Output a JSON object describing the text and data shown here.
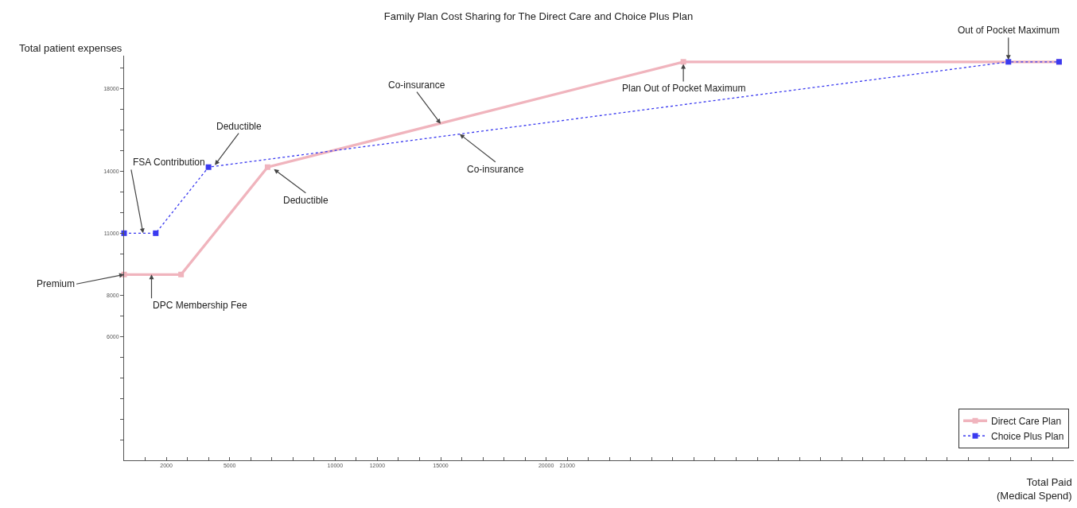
{
  "chart_data": {
    "type": "line",
    "title": "Family Plan Cost Sharing for The Direct Care and Choice Plus Plan",
    "xlabel": "Total Paid\n(Medical Spend)",
    "ylabel": "Total patient expenses",
    "xlim": [
      0,
      45000
    ],
    "ylim": [
      0,
      19600
    ],
    "xticks": [
      {
        "value": 1000,
        "label": null
      },
      2000,
      {
        "value": 3000,
        "label": null
      },
      {
        "value": 4000,
        "label": null
      },
      5000,
      {
        "value": 6000,
        "label": null
      },
      {
        "value": 7000,
        "label": null
      },
      {
        "value": 8000,
        "label": null
      },
      {
        "value": 9000,
        "label": null
      },
      10000,
      {
        "value": 11000,
        "label": null
      },
      12000,
      {
        "value": 13000,
        "label": null
      },
      {
        "value": 14000,
        "label": null
      },
      15000,
      {
        "value": 16000,
        "label": null
      },
      {
        "value": 17000,
        "label": null
      },
      {
        "value": 18000,
        "label": null
      },
      {
        "value": 19000,
        "label": null
      },
      20000,
      21000,
      {
        "value": 22000,
        "label": null
      },
      {
        "value": 23000,
        "label": null
      },
      {
        "value": 24000,
        "label": null
      },
      {
        "value": 25000,
        "label": null
      },
      {
        "value": 26000,
        "label": null
      },
      {
        "value": 27000,
        "label": null
      },
      {
        "value": 28000,
        "label": null
      },
      {
        "value": 29000,
        "label": null
      },
      {
        "value": 30000,
        "label": null
      },
      {
        "value": 31000,
        "label": null
      },
      {
        "value": 32000,
        "label": null
      },
      {
        "value": 33000,
        "label": null
      },
      {
        "value": 34000,
        "label": null
      },
      {
        "value": 35000,
        "label": null
      },
      {
        "value": 36000,
        "label": null
      },
      {
        "value": 37000,
        "label": null
      },
      {
        "value": 38000,
        "label": null
      },
      {
        "value": 39000,
        "label": null
      },
      {
        "value": 40000,
        "label": null
      },
      {
        "value": 41000,
        "label": null
      },
      {
        "value": 42000,
        "label": null
      },
      {
        "value": 43000,
        "label": null
      },
      {
        "value": 44000,
        "label": null
      }
    ],
    "yticks": [
      {
        "value": 1000,
        "label": null
      },
      {
        "value": 2000,
        "label": null
      },
      {
        "value": 3000,
        "label": null
      },
      {
        "value": 4000,
        "label": null
      },
      {
        "value": 5000,
        "label": null
      },
      6000,
      {
        "value": 7000,
        "label": null
      },
      8000,
      {
        "value": 9000,
        "label": null
      },
      {
        "value": 10000,
        "label": null
      },
      11000,
      {
        "value": 12000,
        "label": null
      },
      {
        "value": 13000,
        "label": null
      },
      14000,
      {
        "value": 15000,
        "label": null
      },
      {
        "value": 16000,
        "label": null
      },
      {
        "value": 17000,
        "label": null
      },
      18000,
      {
        "value": 19000,
        "label": null
      }
    ],
    "grid": false,
    "legend": "bottom right",
    "marker": "square",
    "series": [
      {
        "name": "Direct Care Plan",
        "color": "#f0b4bd",
        "line_style": "solid",
        "x": [
          0,
          2700,
          6800,
          26500,
          44300
        ],
        "values": [
          9000,
          9000,
          14200,
          19300,
          19300
        ]
      },
      {
        "name": "Choice Plus Plan",
        "color": "#3a3af0",
        "line_style": "dotted",
        "x": [
          0,
          1500,
          4000,
          41900,
          44300
        ],
        "values": [
          11000,
          11000,
          14200,
          19300,
          19300
        ]
      }
    ],
    "annotations": [
      {
        "text": "Premium",
        "x": 0,
        "y": 9000
      },
      {
        "text": "DPC Membership Fee",
        "x": 1300,
        "y": 9000
      },
      {
        "text": "FSA Contribution",
        "x": 900,
        "y": 11000
      },
      {
        "text": "Deductible",
        "x": 4300,
        "y": 14300
      },
      {
        "text": "Deductible",
        "x": 7100,
        "y": 14100
      },
      {
        "text": "Co-insurance",
        "x": 15000,
        "y": 16300
      },
      {
        "text": "Co-insurance",
        "x": 15900,
        "y": 15800
      },
      {
        "text": "Plan Out of Pocket Maximum",
        "x": 26500,
        "y": 19200
      },
      {
        "text": "Out of Pocket Maximum",
        "x": 41900,
        "y": 19400
      }
    ]
  }
}
